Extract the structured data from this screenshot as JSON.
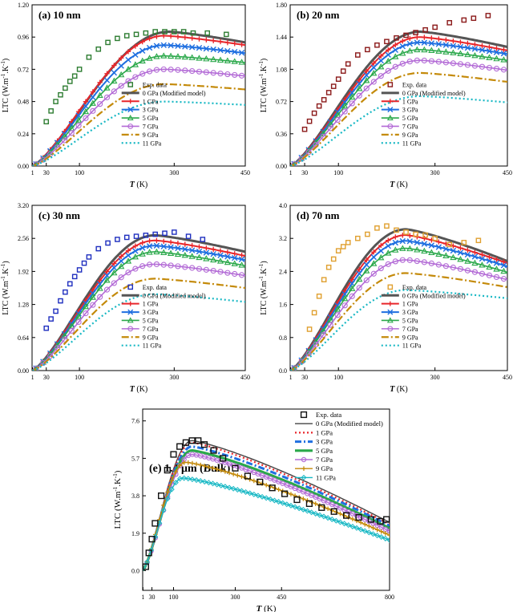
{
  "figure": {
    "panel_ylabel": "LTC (W.m",
    "panel_ylabel_sup1": "-1",
    "panel_ylabel_mid": ".K",
    "panel_ylabel_sup2": "-1",
    "panel_ylabel_end": ")",
    "panel_xlabel_italic": "T",
    "panel_xlabel_rest": " (K)"
  },
  "chart_data": [
    {
      "id": "a",
      "type": "line",
      "title": "(a) 10 nm",
      "xlabel": "T (K)",
      "ylabel": "LTC (W.m-1.K-1)",
      "xlim": [
        0,
        450
      ],
      "ylim": [
        0,
        1.2
      ],
      "xticks": [
        1,
        30,
        100,
        300,
        450
      ],
      "yticks": [
        0.0,
        0.24,
        0.48,
        0.72,
        0.96,
        1.2
      ],
      "ytick_labels": [
        "0.00",
        "0.24",
        "0.48",
        "0.72",
        "0.96",
        "1.20"
      ],
      "legend_position": "lower-center",
      "legend": [
        "Exp. data",
        "0 GPa (Modified model)",
        "1 GPa",
        "3 GPa",
        "5 GPa",
        "7 GPa",
        "9 GPa",
        "11 GPa"
      ],
      "marker_color": "#2e7d32",
      "series": [
        {
          "name": "0 GPa (Modified model)",
          "peak": 1.0,
          "Tpeak": 290,
          "end": 0.92
        },
        {
          "name": "1 GPa",
          "peak": 0.97,
          "Tpeak": 280,
          "end": 0.9
        },
        {
          "name": "3 GPa",
          "peak": 0.9,
          "Tpeak": 280,
          "end": 0.84
        },
        {
          "name": "5 GPa",
          "peak": 0.82,
          "Tpeak": 280,
          "end": 0.77
        },
        {
          "name": "7 GPa",
          "peak": 0.72,
          "Tpeak": 280,
          "end": 0.67
        },
        {
          "name": "9 GPa",
          "peak": 0.61,
          "Tpeak": 280,
          "end": 0.57
        },
        {
          "name": "11 GPa",
          "peak": 0.48,
          "Tpeak": 280,
          "end": 0.455
        }
      ],
      "exp": {
        "x": [
          30,
          40,
          50,
          60,
          70,
          80,
          90,
          100,
          120,
          140,
          160,
          180,
          200,
          220,
          240,
          260,
          280,
          300,
          320,
          340,
          370,
          410
        ],
        "y": [
          0.33,
          0.41,
          0.48,
          0.53,
          0.58,
          0.63,
          0.67,
          0.72,
          0.81,
          0.87,
          0.92,
          0.95,
          0.97,
          0.98,
          0.99,
          1.0,
          1.0,
          1.0,
          1.0,
          0.99,
          0.99,
          0.98
        ]
      }
    },
    {
      "id": "b",
      "type": "line",
      "title": "(b) 20 nm",
      "xlabel": "T (K)",
      "ylabel": "LTC (W.m-1.K-1)",
      "xlim": [
        0,
        450
      ],
      "ylim": [
        0,
        1.8
      ],
      "xticks": [
        1,
        30,
        100,
        300,
        450
      ],
      "yticks": [
        0.0,
        0.36,
        0.72,
        1.08,
        1.44,
        1.8
      ],
      "ytick_labels": [
        "0.00",
        "0.36",
        "0.72",
        "1.08",
        "1.44",
        "1.80"
      ],
      "legend_position": "lower-center",
      "legend": [
        "Exp. data",
        "0 GPa (Modified model)",
        "1 GPa",
        "3 GPa",
        "5 GPa",
        "7 GPa",
        "9 GPa",
        "11 GPa"
      ],
      "marker_color": "#8b1a1a",
      "series": [
        {
          "name": "0 GPa (Modified model)",
          "peak": 1.5,
          "Tpeak": 270,
          "end": 1.33
        },
        {
          "name": "1 GPa",
          "peak": 1.44,
          "Tpeak": 270,
          "end": 1.29
        },
        {
          "name": "3 GPa",
          "peak": 1.38,
          "Tpeak": 270,
          "end": 1.25
        },
        {
          "name": "5 GPa",
          "peak": 1.3,
          "Tpeak": 270,
          "end": 1.18
        },
        {
          "name": "7 GPa",
          "peak": 1.18,
          "Tpeak": 270,
          "end": 1.07
        },
        {
          "name": "9 GPa",
          "peak": 1.04,
          "Tpeak": 270,
          "end": 0.94
        },
        {
          "name": "11 GPa",
          "peak": 0.78,
          "Tpeak": 270,
          "end": 0.71
        }
      ],
      "exp": {
        "x": [
          30,
          40,
          50,
          60,
          70,
          80,
          90,
          100,
          110,
          120,
          140,
          160,
          180,
          200,
          220,
          240,
          260,
          280,
          300,
          330,
          360,
          380,
          410
        ],
        "y": [
          0.41,
          0.5,
          0.59,
          0.67,
          0.74,
          0.82,
          0.89,
          0.97,
          1.06,
          1.14,
          1.24,
          1.3,
          1.35,
          1.39,
          1.43,
          1.46,
          1.49,
          1.52,
          1.55,
          1.6,
          1.63,
          1.65,
          1.68
        ]
      }
    },
    {
      "id": "c",
      "type": "line",
      "title": "(c) 30 nm",
      "xlabel": "T (K)",
      "ylabel": "LTC (W.m-1.K-1)",
      "xlim": [
        0,
        450
      ],
      "ylim": [
        0,
        3.2
      ],
      "xticks": [
        1,
        30,
        100,
        300,
        450
      ],
      "yticks": [
        0.0,
        0.64,
        1.28,
        1.92,
        2.56,
        3.2
      ],
      "ytick_labels": [
        "0.00",
        "0.64",
        "1.28",
        "1.92",
        "2.56",
        "3.20"
      ],
      "legend_position": "lower-center",
      "legend": [
        "Exp. data",
        "0 GPa (Modified model)",
        "1 GPa",
        "3 GPa",
        "5 GPa",
        "7 GPa",
        "9 GPa",
        "11 GPa"
      ],
      "marker_color": "#1f2fbf",
      "series": [
        {
          "name": "0 GPa (Modified model)",
          "peak": 2.62,
          "Tpeak": 260,
          "end": 2.3
        },
        {
          "name": "1 GPa",
          "peak": 2.52,
          "Tpeak": 260,
          "end": 2.22
        },
        {
          "name": "3 GPa",
          "peak": 2.42,
          "Tpeak": 260,
          "end": 2.14
        },
        {
          "name": "5 GPa",
          "peak": 2.3,
          "Tpeak": 260,
          "end": 2.03
        },
        {
          "name": "7 GPa",
          "peak": 2.06,
          "Tpeak": 260,
          "end": 1.84
        },
        {
          "name": "9 GPa",
          "peak": 1.78,
          "Tpeak": 260,
          "end": 1.6
        },
        {
          "name": "11 GPa",
          "peak": 1.48,
          "Tpeak": 260,
          "end": 1.33
        }
      ],
      "exp": {
        "x": [
          30,
          40,
          50,
          60,
          70,
          80,
          90,
          100,
          110,
          120,
          140,
          160,
          180,
          200,
          220,
          240,
          260,
          280,
          300,
          330,
          360
        ],
        "y": [
          0.82,
          1.0,
          1.15,
          1.35,
          1.52,
          1.68,
          1.82,
          1.95,
          2.08,
          2.2,
          2.36,
          2.47,
          2.54,
          2.58,
          2.6,
          2.62,
          2.64,
          2.66,
          2.68,
          2.6,
          2.54
        ]
      }
    },
    {
      "id": "d",
      "type": "line",
      "title": "(d) 70 nm",
      "xlabel": "T (K)",
      "ylabel": "LTC (W.m-1.K-1)",
      "xlim": [
        0,
        450
      ],
      "ylim": [
        0,
        4.0
      ],
      "xticks": [
        1,
        30,
        100,
        300,
        450
      ],
      "yticks": [
        0.0,
        0.8,
        1.6,
        2.4,
        3.2,
        4.0
      ],
      "ytick_labels": [
        "0.0",
        "0.8",
        "1.6",
        "2.4",
        "3.2",
        "4.0"
      ],
      "legend_position": "lower-center",
      "legend": [
        "Exp. data",
        "0 GPa (Modified model)",
        "1 GPa",
        "3 GPa",
        "5 GPa",
        "7 GPa",
        "9 GPa",
        "11 GPa"
      ],
      "marker_color": "#e0a030",
      "series": [
        {
          "name": "0 GPa (Modified model)",
          "peak": 3.42,
          "Tpeak": 240,
          "end": 2.65
        },
        {
          "name": "1 GPa",
          "peak": 3.28,
          "Tpeak": 240,
          "end": 2.6
        },
        {
          "name": "3 GPa",
          "peak": 3.14,
          "Tpeak": 240,
          "end": 2.52
        },
        {
          "name": "5 GPa",
          "peak": 2.96,
          "Tpeak": 240,
          "end": 2.38
        },
        {
          "name": "7 GPa",
          "peak": 2.68,
          "Tpeak": 240,
          "end": 2.2
        },
        {
          "name": "9 GPa",
          "peak": 2.36,
          "Tpeak": 240,
          "end": 2.02
        },
        {
          "name": "11 GPa",
          "peak": 1.95,
          "Tpeak": 240,
          "end": 1.75
        }
      ],
      "exp": {
        "x": [
          40,
          50,
          60,
          70,
          80,
          90,
          100,
          110,
          120,
          140,
          160,
          180,
          200,
          220,
          240,
          260,
          280,
          300,
          330,
          360,
          390
        ],
        "y": [
          1.0,
          1.4,
          1.8,
          2.2,
          2.5,
          2.7,
          2.9,
          3.0,
          3.1,
          3.2,
          3.3,
          3.45,
          3.5,
          3.4,
          3.35,
          3.3,
          3.28,
          3.2,
          3.05,
          3.1,
          3.15
        ]
      }
    },
    {
      "id": "e",
      "type": "line",
      "title": "(e) 1.4 μm (Bulk)",
      "xlabel": "T (K)",
      "ylabel": "LTC (W.m-1.K-1)",
      "xlim": [
        0,
        800
      ],
      "ylim": [
        -1.0,
        8.2
      ],
      "xticks": [
        1,
        30,
        100,
        300,
        450,
        800
      ],
      "yticks": [
        0.0,
        1.9,
        3.8,
        5.7,
        7.6
      ],
      "ytick_labels": [
        "0.0",
        "1.9",
        "3.8",
        "5.7",
        "7.6"
      ],
      "legend_position": "top-right",
      "legend": [
        "Exp. data",
        "0 GPa (Modified model)",
        "1 GPa",
        "3 GPa",
        "5 GPa",
        "7 GPa",
        "9 GPa",
        "11 GPa"
      ],
      "marker_color": "#111111",
      "series": [
        {
          "name": "0 GPa (Modified model)",
          "peak": 6.6,
          "Tpeak": 160,
          "end": 2.45
        },
        {
          "name": "1 GPa",
          "peak": 6.5,
          "Tpeak": 160,
          "end": 2.35
        },
        {
          "name": "3 GPa",
          "peak": 6.3,
          "Tpeak": 160,
          "end": 2.28
        },
        {
          "name": "5 GPa",
          "peak": 6.1,
          "Tpeak": 160,
          "end": 2.15
        },
        {
          "name": "7 GPa",
          "peak": 5.9,
          "Tpeak": 160,
          "end": 2.0
        },
        {
          "name": "9 GPa",
          "peak": 5.5,
          "Tpeak": 140,
          "end": 1.8
        },
        {
          "name": "11 GPa",
          "peak": 4.7,
          "Tpeak": 130,
          "end": 1.55
        }
      ],
      "exp": {
        "x": [
          10,
          20,
          30,
          40,
          60,
          80,
          100,
          120,
          140,
          160,
          180,
          200,
          230,
          260,
          300,
          340,
          380,
          420,
          460,
          500,
          540,
          580,
          620,
          660,
          700,
          740,
          770,
          790
        ],
        "y": [
          0.2,
          0.9,
          1.6,
          2.4,
          3.8,
          5.1,
          5.9,
          6.3,
          6.5,
          6.6,
          6.6,
          6.4,
          6.1,
          5.7,
          5.2,
          4.8,
          4.5,
          4.2,
          3.9,
          3.6,
          3.4,
          3.2,
          3.0,
          2.8,
          2.7,
          2.6,
          2.5,
          2.6
        ]
      }
    }
  ]
}
